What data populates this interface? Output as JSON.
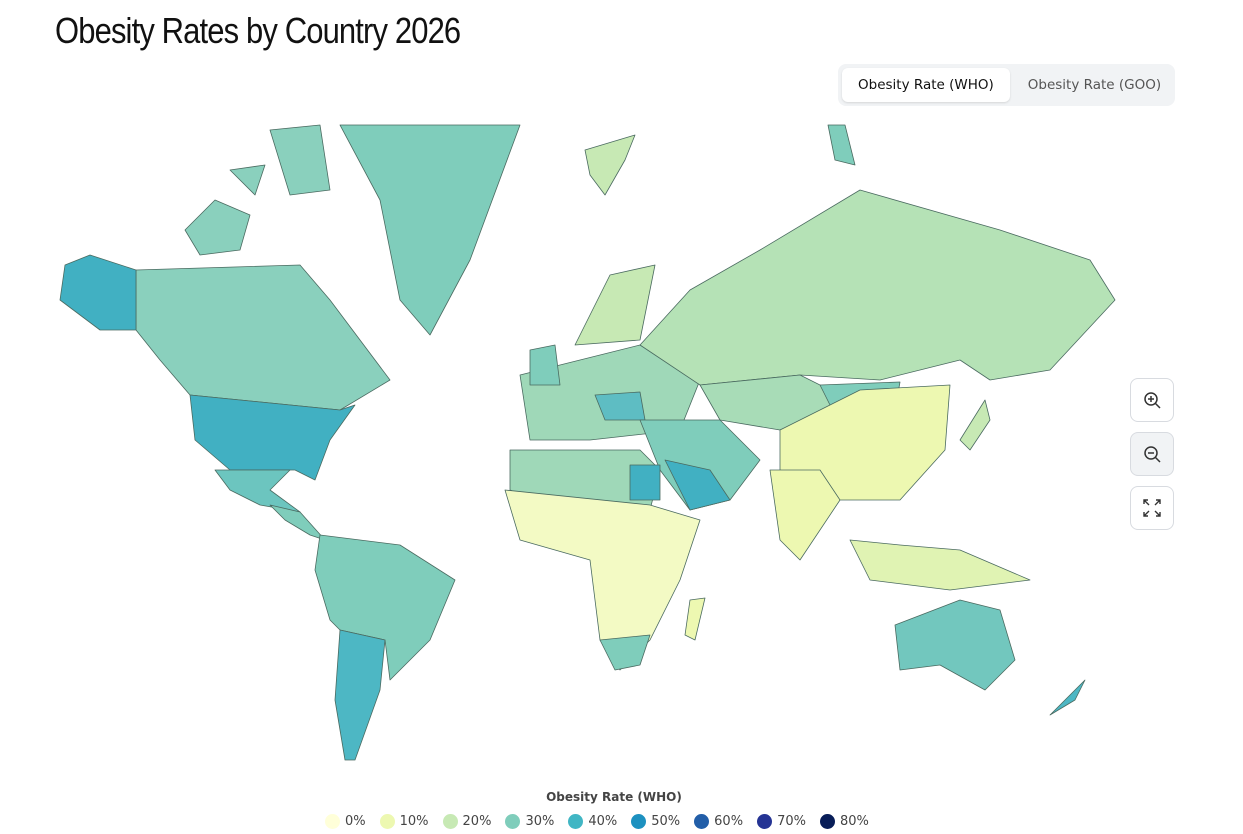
{
  "header": {
    "title": "Obesity Rates by Country 2026"
  },
  "toggle": {
    "options": [
      "Obesity Rate (WHO)",
      "Obesity Rate (GOO)"
    ]
  },
  "legend": {
    "title": "Obesity Rate (WHO)",
    "items": [
      {
        "label": "0%",
        "color": "#ffffd9"
      },
      {
        "label": "10%",
        "color": "#edf8b1"
      },
      {
        "label": "20%",
        "color": "#c7e9b4"
      },
      {
        "label": "30%",
        "color": "#7fcdbb"
      },
      {
        "label": "40%",
        "color": "#41b6c4"
      },
      {
        "label": "50%",
        "color": "#1d91c0"
      },
      {
        "label": "60%",
        "color": "#225ea8"
      },
      {
        "label": "70%",
        "color": "#253494"
      },
      {
        "label": "80%",
        "color": "#081d58"
      }
    ]
  }
}
